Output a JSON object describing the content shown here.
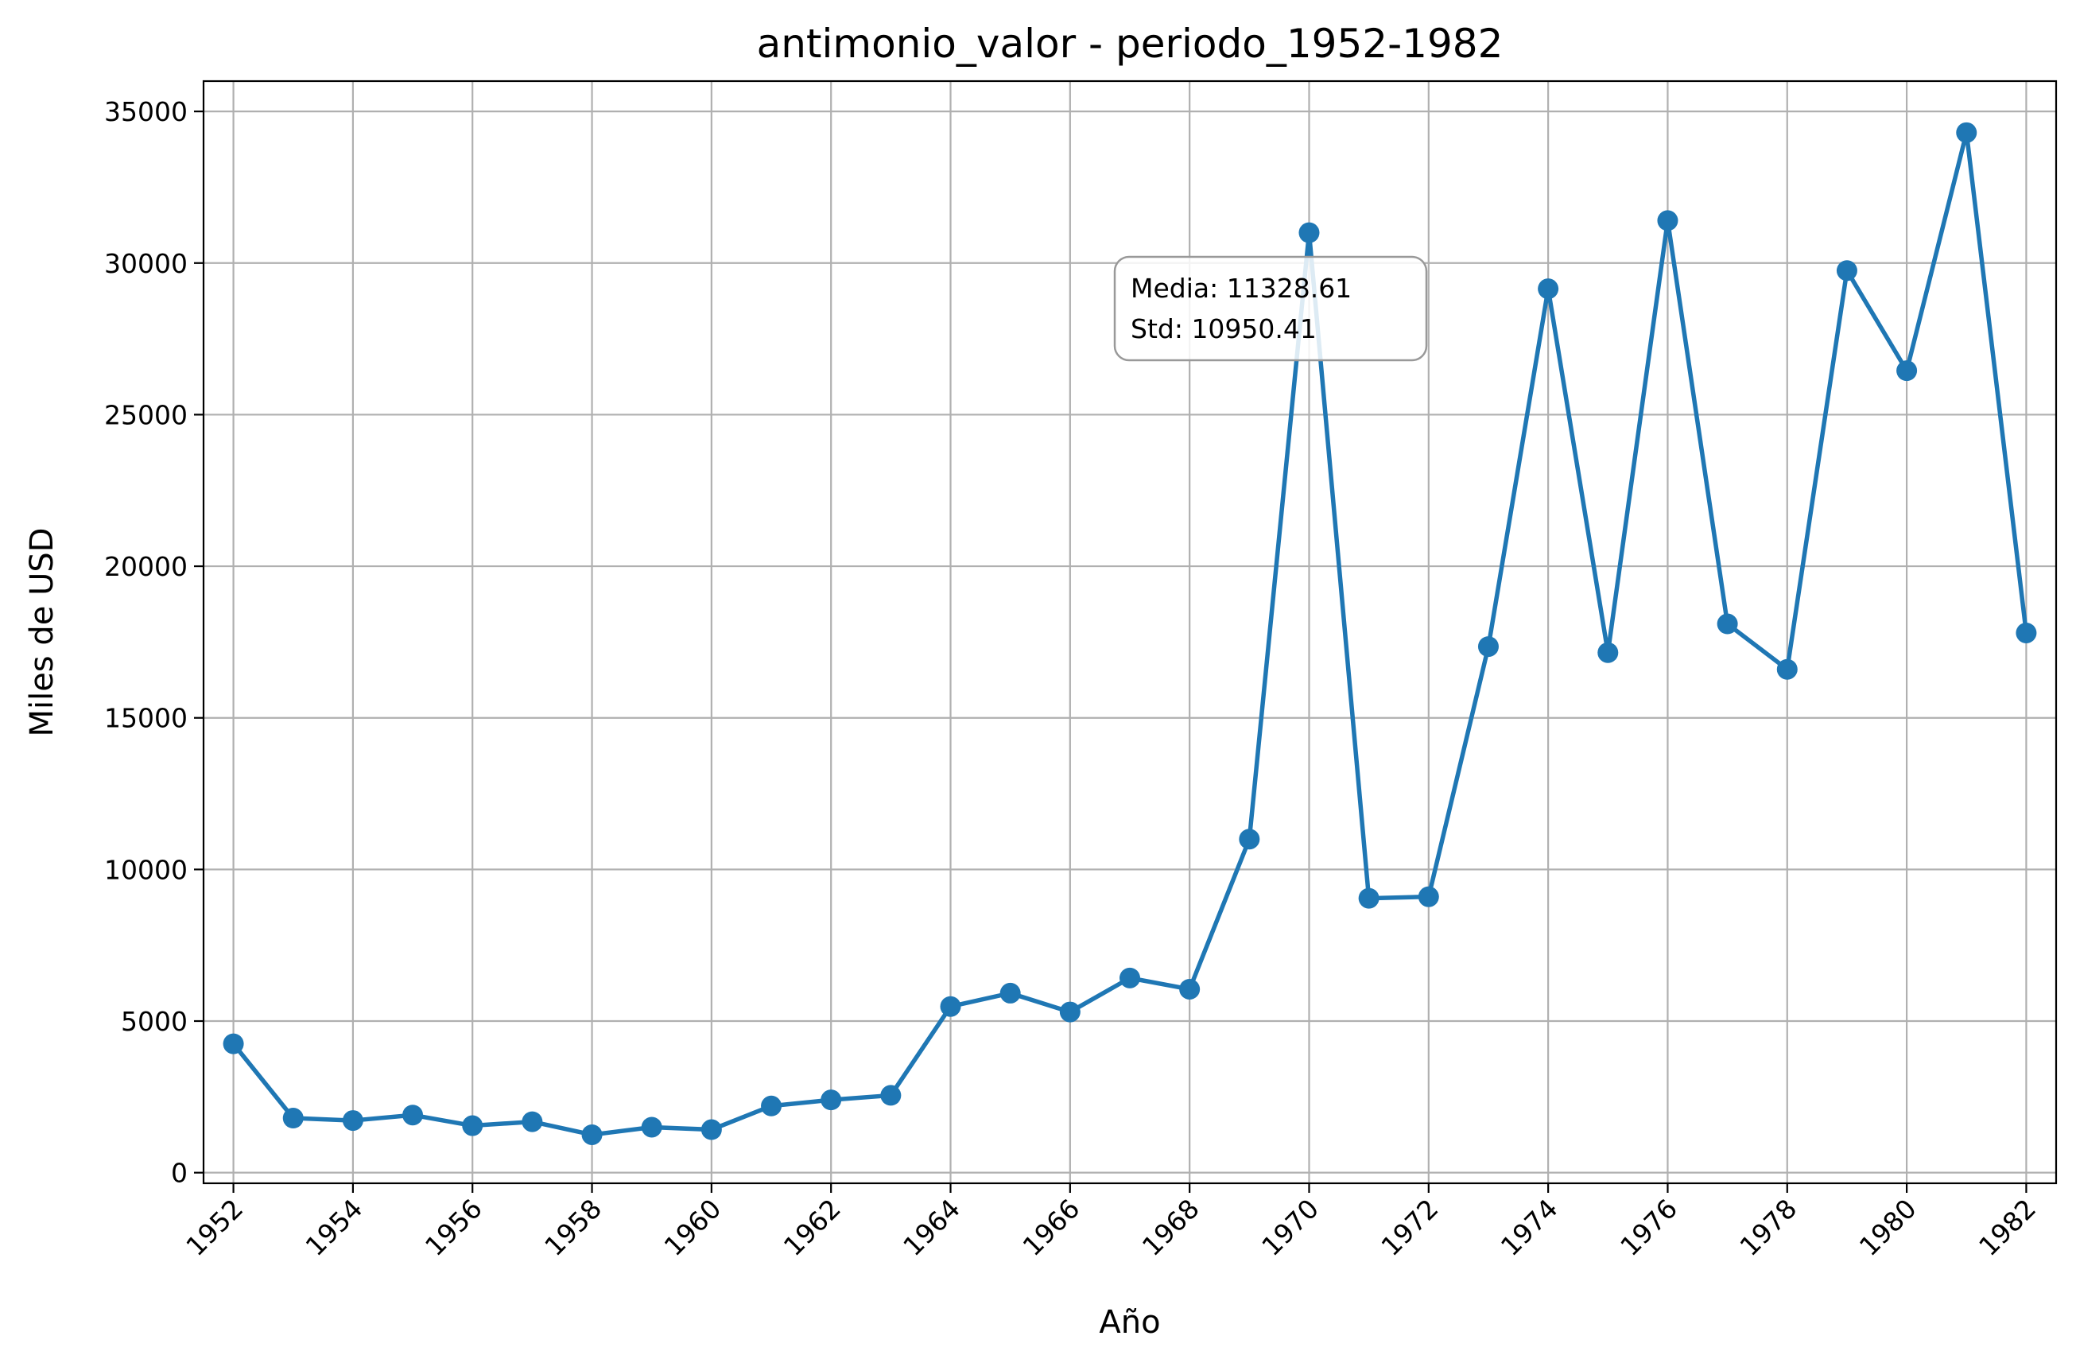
{
  "chart_data": {
    "type": "line",
    "title": "antimonio_valor - periodo_1952-1982",
    "xlabel": "Año",
    "ylabel": "Miles de USD",
    "x": [
      1952,
      1953,
      1954,
      1955,
      1956,
      1957,
      1958,
      1959,
      1960,
      1961,
      1962,
      1963,
      1964,
      1965,
      1966,
      1967,
      1968,
      1969,
      1970,
      1971,
      1972,
      1973,
      1974,
      1975,
      1976,
      1977,
      1978,
      1979,
      1980,
      1981,
      1982
    ],
    "series": [
      {
        "values": [
          4250,
          1800,
          1720,
          1900,
          1550,
          1680,
          1250,
          1500,
          1420,
          2200,
          2400,
          2550,
          5480,
          5920,
          5300,
          6420,
          6050,
          11000,
          31000,
          9050,
          9100,
          17350,
          29150,
          17150,
          31400,
          18100,
          16600,
          29750,
          26450,
          34300,
          17800
        ],
        "color": "#1f77b4"
      }
    ],
    "xticks": [
      "1952",
      "1954",
      "1956",
      "1958",
      "1960",
      "1962",
      "1964",
      "1966",
      "1968",
      "1970",
      "1972",
      "1974",
      "1976",
      "1978",
      "1980",
      "1982"
    ],
    "yticks": [
      "0",
      "5000",
      "10000",
      "15000",
      "20000",
      "25000",
      "30000",
      "35000"
    ],
    "xlim": [
      1951.5,
      1982.5
    ],
    "ylim": [
      -350,
      36000
    ],
    "grid": true,
    "annotation": {
      "line1": "Media: 11328.61",
      "line2": "Std: 10950.41"
    }
  }
}
